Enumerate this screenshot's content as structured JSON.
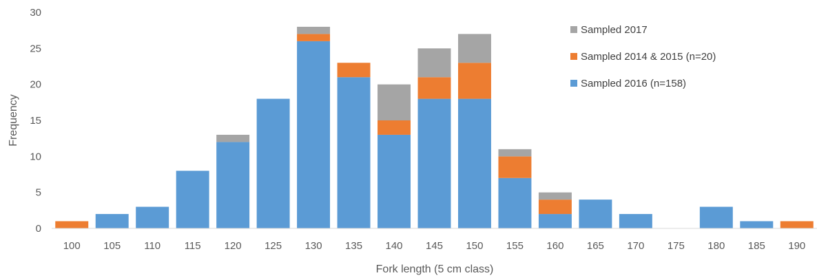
{
  "chart_data": {
    "type": "bar",
    "stacked": true,
    "categories": [
      "100",
      "105",
      "110",
      "115",
      "120",
      "125",
      "130",
      "135",
      "140",
      "145",
      "150",
      "155",
      "160",
      "165",
      "170",
      "175",
      "180",
      "185",
      "190"
    ],
    "series": [
      {
        "name": "Sampled 2016 (n=158)",
        "color": "#5B9BD5",
        "values": [
          0,
          2,
          3,
          8,
          12,
          18,
          26,
          21,
          13,
          18,
          18,
          7,
          2,
          4,
          2,
          0,
          3,
          1,
          0
        ]
      },
      {
        "name": "Sampled 2014 & 2015 (n=20)",
        "color": "#ED7D31",
        "values": [
          1,
          0,
          0,
          0,
          0,
          0,
          1,
          2,
          2,
          3,
          5,
          3,
          2,
          0,
          0,
          0,
          0,
          0,
          1
        ]
      },
      {
        "name": "Sampled 2017",
        "color": "#A5A5A5",
        "values": [
          0,
          0,
          0,
          0,
          1,
          0,
          1,
          0,
          5,
          4,
          4,
          1,
          1,
          0,
          0,
          0,
          0,
          0,
          0
        ]
      }
    ],
    "legend_order": [
      "Sampled 2017",
      "Sampled 2014 & 2015 (n=20)",
      "Sampled 2016 (n=158)"
    ],
    "yticks": [
      "0",
      "5",
      "10",
      "15",
      "20",
      "25",
      "30"
    ],
    "ylim": [
      0,
      30
    ],
    "xlabel": "Fork length (5 cm class)",
    "ylabel": "Frequency",
    "legend_position": "top-right",
    "grid": false
  }
}
